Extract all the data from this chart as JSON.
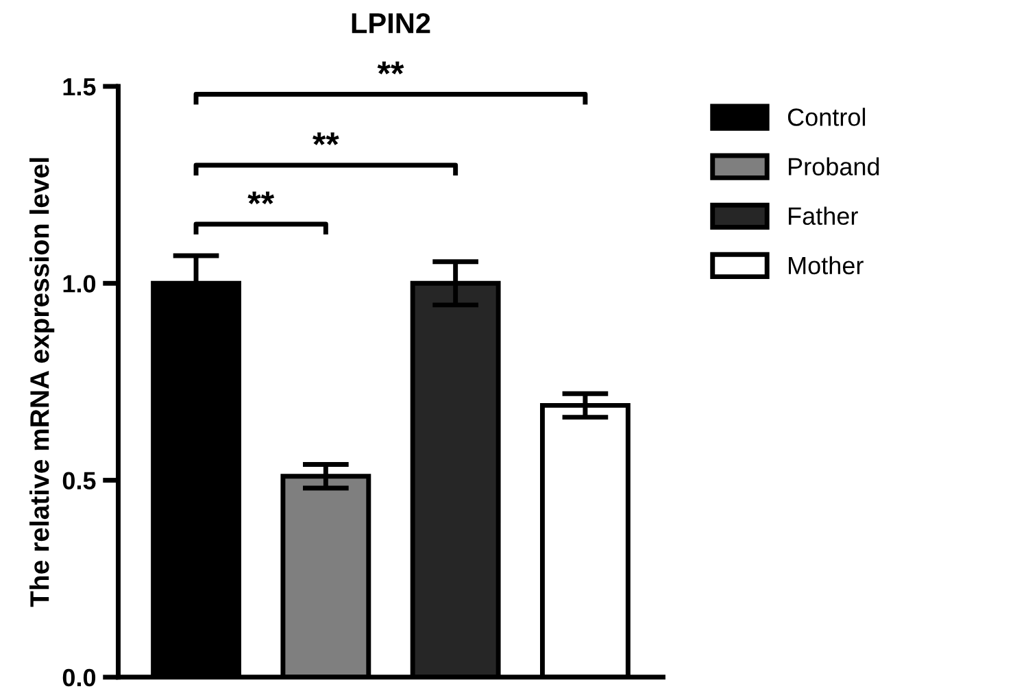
{
  "chart_data": {
    "type": "bar",
    "title": "LPIN2",
    "ylabel": "The relative mRNA expression level",
    "categories": [
      null,
      null,
      null,
      null
    ],
    "series": [
      {
        "name": "Control",
        "color": "#000000",
        "values": [
          1.0,
          null,
          null,
          null
        ],
        "errors": [
          0.07,
          null,
          null,
          null
        ]
      },
      {
        "name": "Proband",
        "color": "#7f7f7f",
        "values": [
          null,
          0.51,
          null,
          null
        ],
        "errors": [
          null,
          0.03,
          null,
          null
        ]
      },
      {
        "name": "Father",
        "color": "#262626",
        "values": [
          null,
          null,
          1.0,
          null
        ],
        "errors": [
          null,
          null,
          0.055,
          null
        ]
      },
      {
        "name": "Mother",
        "color": "#ffffff",
        "values": [
          null,
          null,
          null,
          0.69
        ],
        "errors": [
          null,
          null,
          null,
          0.03
        ]
      }
    ],
    "ylim": [
      0,
      1.5
    ],
    "yticks": [
      {
        "value": 0,
        "label": "0.0"
      },
      0.5,
      {
        "value": 1,
        "label": "1.0"
      },
      1.5
    ],
    "annotations": [
      "**",
      "**",
      "**"
    ],
    "legend": "right",
    "grid": false,
    "tick_labels": "y"
  }
}
